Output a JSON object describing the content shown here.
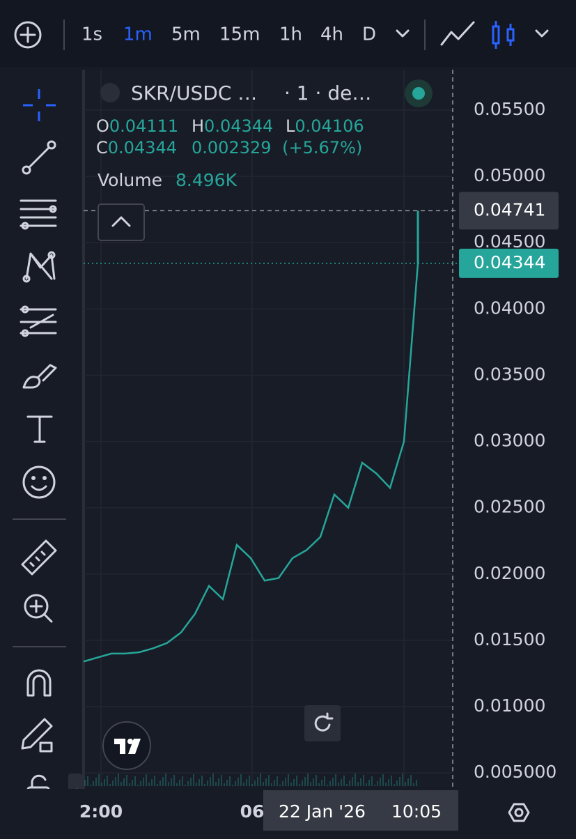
{
  "toolbar": {
    "intervals": [
      "1s",
      "1m",
      "5m",
      "15m",
      "1h",
      "4h",
      "D"
    ]
  },
  "legend": {
    "symbol": "SKR/USDC …",
    "suffix": "· 1 · de…",
    "open_label": "O",
    "open": 0.04111,
    "high_label": "H",
    "high": 0.04344,
    "low_label": "L",
    "low": 0.04106,
    "close_label": "C",
    "close": 0.04344,
    "change": 0.002329,
    "change_pct": "(+5.67%)",
    "volume_label": "Volume",
    "volume": "8.496K"
  },
  "chart_data": {
    "type": "line",
    "color": "#26a69a",
    "values": [
      0.0134,
      0.0137,
      0.014,
      0.014,
      0.0141,
      0.0144,
      0.0148,
      0.0156,
      0.017,
      0.0191,
      0.0181,
      0.0222,
      0.0212,
      0.0195,
      0.0197,
      0.0212,
      0.0218,
      0.0228,
      0.026,
      0.025,
      0.0284,
      0.0276,
      0.0265,
      0.03,
      0.04344
    ],
    "ylim": [
      0.0039,
      0.05805
    ],
    "yticks": [
      {
        "value": 0.055,
        "label": "0.05500"
      },
      {
        "value": 0.05,
        "label": "0.05000"
      },
      {
        "value": 0.045,
        "label": "0.04500"
      },
      {
        "value": 0.04,
        "label": "0.04000"
      },
      {
        "value": 0.035,
        "label": "0.03500"
      },
      {
        "value": 0.03,
        "label": "0.03000"
      },
      {
        "value": 0.025,
        "label": "0.02500"
      },
      {
        "value": 0.02,
        "label": "0.02000"
      },
      {
        "value": 0.015,
        "label": "0.01500"
      },
      {
        "value": 0.01,
        "label": "0.01000"
      },
      {
        "value": 0.005,
        "label": "0.005000"
      }
    ],
    "crosshair_price": 0.04741,
    "last_price": 0.04344,
    "x_labels": [
      "2:00",
      "06"
    ],
    "crosshair_date": "22 Jan '26",
    "crosshair_time": "10:05"
  }
}
